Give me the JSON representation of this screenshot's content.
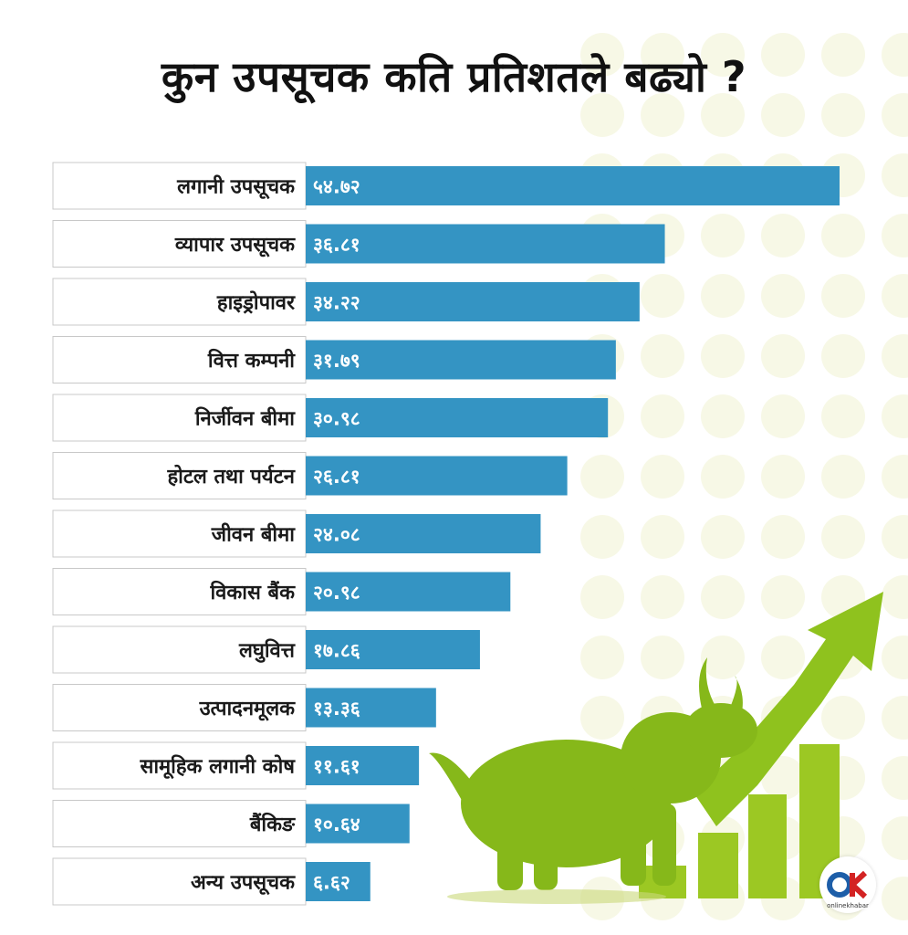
{
  "title": "कुन उपसूचक कति प्रतिशतले बढ्यो ?",
  "brand": {
    "logo_letters": "OK",
    "name": "onlinekhabar"
  },
  "colors": {
    "bar": "#3494c3",
    "label_bg": "#ffffff",
    "dots": "#f7f8e6",
    "bull": "#8fbf1a",
    "logo_red": "#d32323",
    "logo_blue": "#1d5ea8"
  },
  "chart_data": {
    "type": "bar",
    "orientation": "horizontal",
    "categories": [
      "लगानी उपसूचक",
      "व्यापार उपसूचक",
      "हाइड्रोपावर",
      "वित्त कम्पनी",
      "निर्जीवन बीमा",
      "होटल तथा पर्यटन",
      "जीवन बीमा",
      "विकास बैंक",
      "लघुवित्त",
      "उत्पादनमूलक",
      "सामूहिक लगानी कोष",
      "बैंकिङ",
      "अन्य उपसूचक"
    ],
    "values": [
      54.72,
      36.81,
      34.22,
      31.79,
      30.98,
      26.81,
      24.08,
      20.98,
      17.86,
      13.36,
      11.61,
      10.64,
      6.62
    ],
    "value_labels": [
      "५४.७२",
      "३६.८१",
      "३४.२२",
      "३१.७९",
      "३०.९८",
      "२६.८१",
      "२४.०८",
      "२०.९८",
      "१७.८६",
      "१३.३६",
      "११.६१",
      "१०.६४",
      "६.६२"
    ],
    "unit": "%",
    "xlim": [
      0,
      54.72
    ],
    "grid": false,
    "legend": "none"
  }
}
